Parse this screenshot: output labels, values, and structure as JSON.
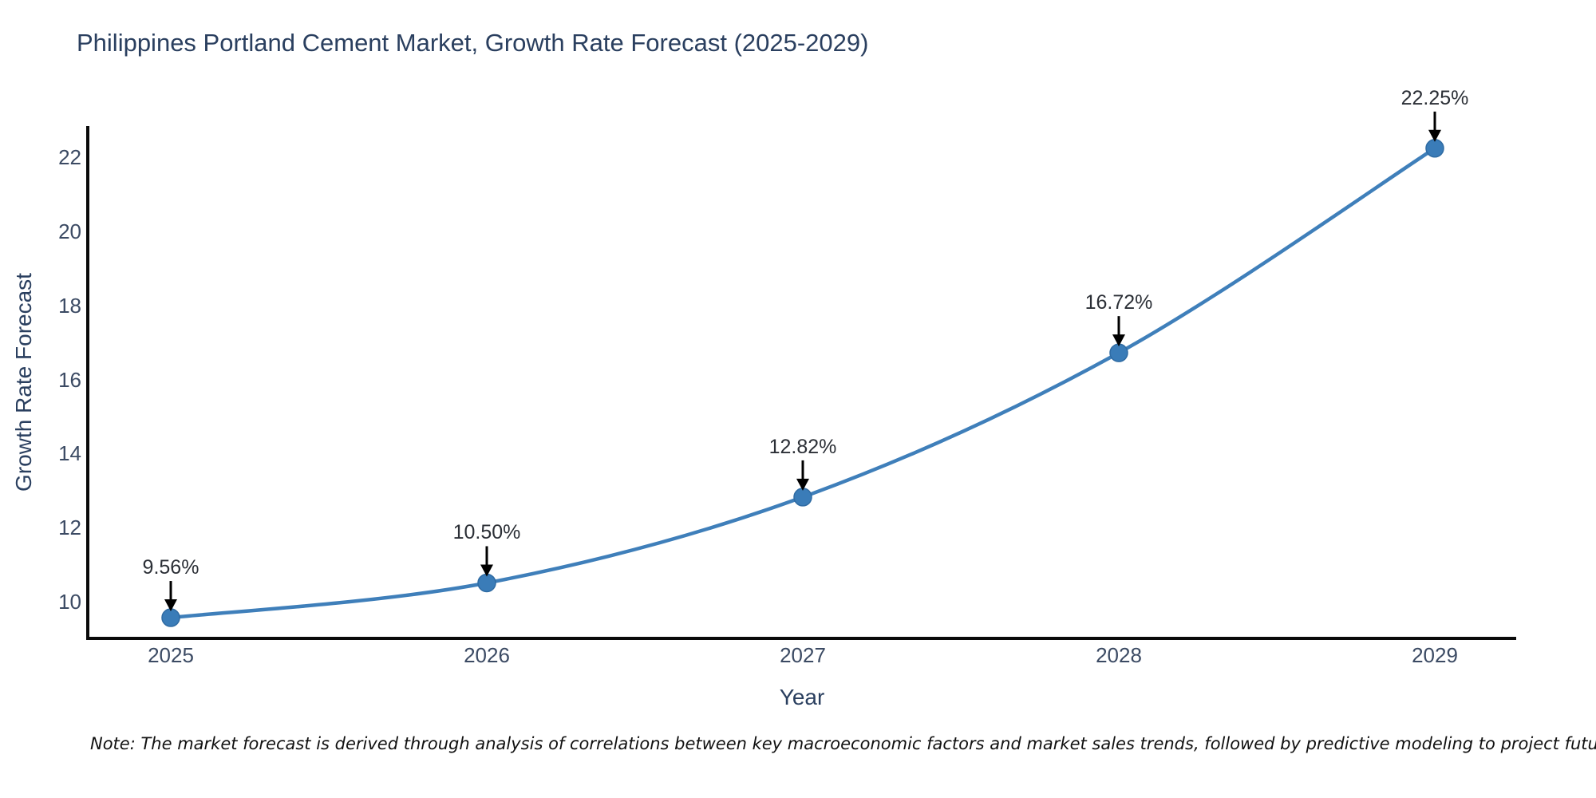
{
  "title": "Philippines Portland Cement Market, Growth Rate Forecast (2025-2029)",
  "note": "Note: The market forecast is derived through analysis of correlations between key macroeconomic factors and market sales trends, followed by predictive modeling to project future sales",
  "chart_data": {
    "type": "line",
    "title": "Philippines Portland Cement Market, Growth Rate Forecast (2025-2029)",
    "xlabel": "Year",
    "ylabel": "Growth Rate Forecast",
    "categories": [
      "2025",
      "2026",
      "2027",
      "2028",
      "2029"
    ],
    "values": [
      9.56,
      10.5,
      12.82,
      16.72,
      22.25
    ],
    "point_labels": [
      "9.56%",
      "10.50%",
      "12.82%",
      "16.72%",
      "22.25%"
    ],
    "y_ticks": [
      10,
      12,
      14,
      16,
      18,
      20,
      22
    ],
    "ylim": [
      9.0,
      22.85
    ],
    "grid": false,
    "legend": false,
    "annotations_have_arrows": true,
    "colors": {
      "line": "#3f7fba",
      "marker_fill": "#3a7cb8",
      "marker_edge": "#2f6ba3",
      "axis": "#0a0a0a",
      "arrow": "#000000",
      "title_text": "#2a3f5f",
      "tick_text": "#3b4a63",
      "annotation_text": "#2b2f36",
      "note_text": "#111111",
      "background": "#ffffff"
    }
  }
}
